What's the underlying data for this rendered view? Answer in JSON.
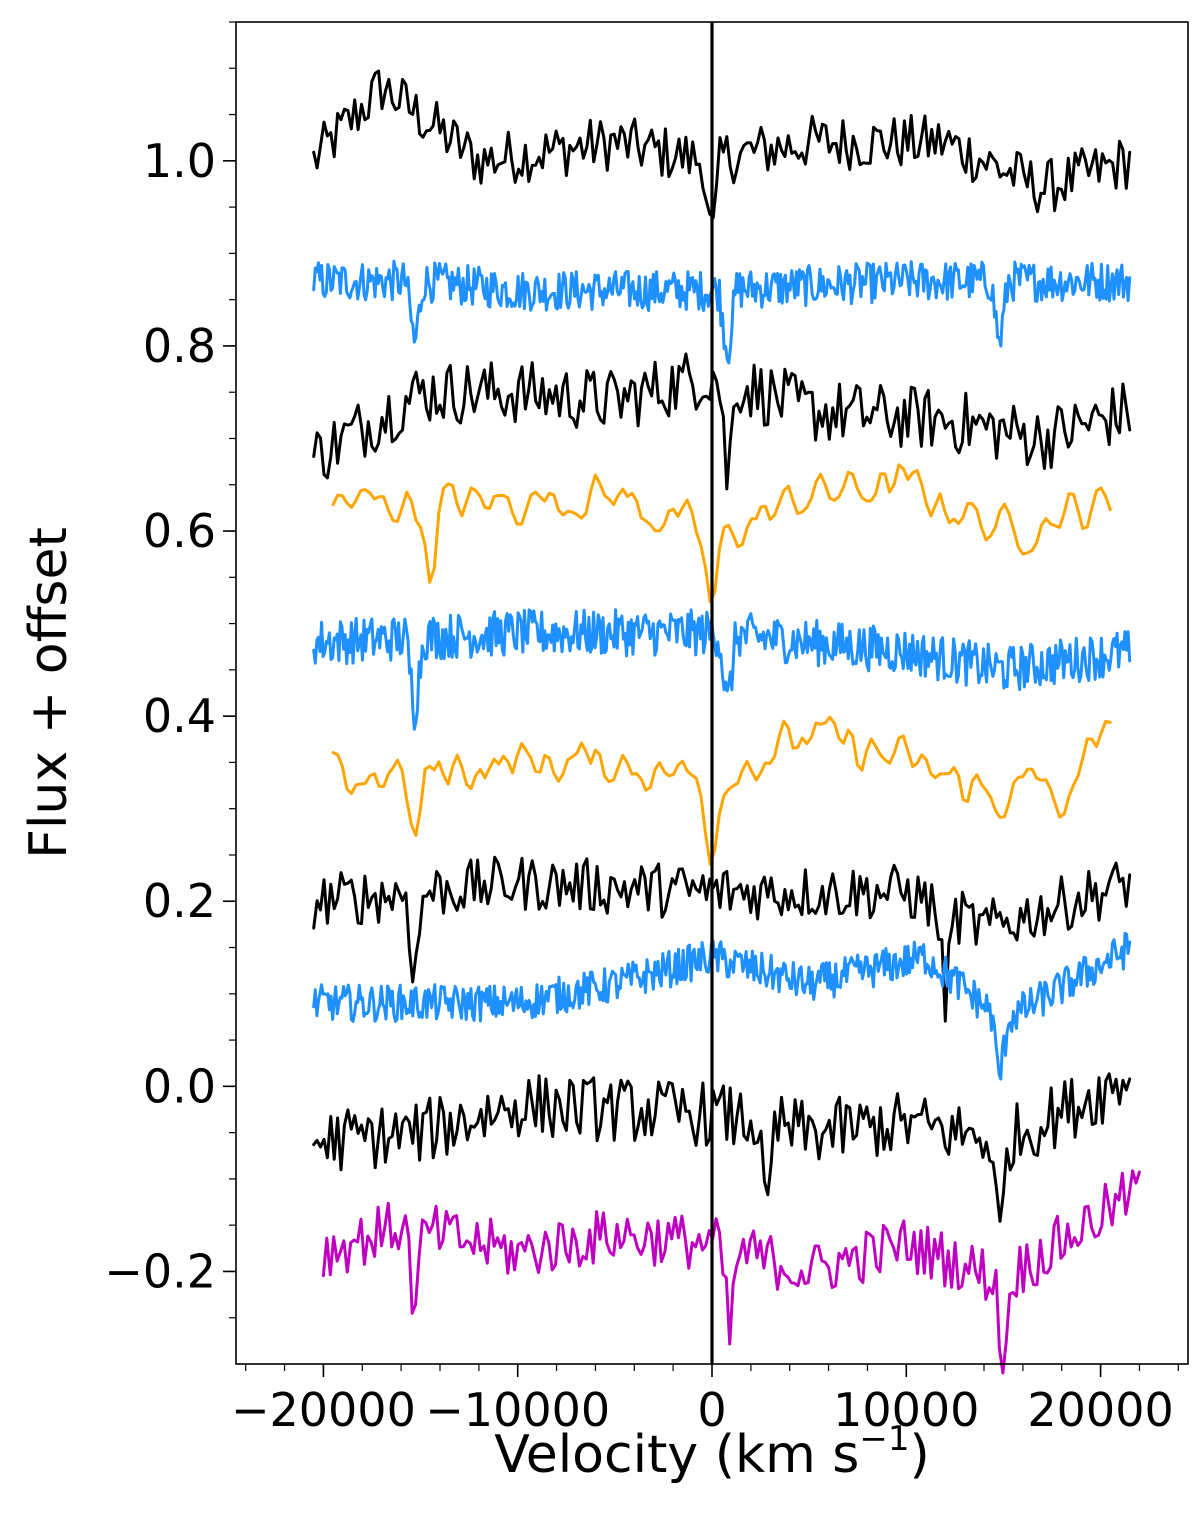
{
  "chart_data": {
    "type": "line",
    "xlabel": "Velocity (km s",
    "xlabel_superscript": "−1",
    "xlabel_suffix": ")",
    "ylabel": "Flux + offset",
    "xlim": [
      -24500,
      24500
    ],
    "ylim": [
      -0.3,
      1.15
    ],
    "x_ticks": [
      -20000,
      -10000,
      0,
      10000,
      20000
    ],
    "x_tick_labels": [
      "−20000",
      "−10000",
      "0",
      "10000",
      "20000"
    ],
    "y_ticks": [
      -0.2,
      0.0,
      0.2,
      0.4,
      0.6,
      0.8,
      1.0
    ],
    "y_tick_labels": [
      "−0.2",
      "0.0",
      "0.2",
      "0.4",
      "0.6",
      "0.8",
      "1.0"
    ],
    "minor_x_step": 2000,
    "minor_y_step": 0.05,
    "reference_line_x": 0,
    "grid": false,
    "legend": "none",
    "series": [
      {
        "color": "#000000",
        "x_range": [
          -20500,
          21500
        ],
        "n_points": 240,
        "dip_at": [
          0
        ],
        "baseline": [
          [
            -20500,
            1.0
          ],
          [
            -17000,
            1.08
          ],
          [
            -12000,
            1.0
          ],
          [
            -5000,
            1.02
          ],
          [
            -500,
            1.0
          ],
          [
            5000,
            1.02
          ],
          [
            12000,
            1.02
          ],
          [
            17000,
            0.97
          ],
          [
            21500,
            1.0
          ]
        ],
        "noise": 0.03
      },
      {
        "color": "#1e90ff",
        "x_range": [
          -20500,
          21500
        ],
        "n_points": 520,
        "dip_at": [
          -15300,
          800,
          14800
        ],
        "baseline": [
          [
            -20500,
            0.87
          ],
          [
            -15000,
            0.87
          ],
          [
            -10000,
            0.86
          ],
          [
            0,
            0.86
          ],
          [
            10000,
            0.87
          ],
          [
            21500,
            0.87
          ]
        ],
        "noise": 0.022
      },
      {
        "color": "#000000",
        "x_range": [
          -20500,
          21500
        ],
        "n_points": 240,
        "dip_at": [
          800
        ],
        "baseline": [
          [
            -20500,
            0.68
          ],
          [
            -15000,
            0.75
          ],
          [
            -10000,
            0.75
          ],
          [
            -5000,
            0.74
          ],
          [
            0,
            0.77
          ],
          [
            5000,
            0.73
          ],
          [
            12000,
            0.72
          ],
          [
            17000,
            0.7
          ],
          [
            21500,
            0.73
          ]
        ],
        "noise": 0.035
      },
      {
        "color": "#ffa500",
        "x_range": [
          -19500,
          20500
        ],
        "n_points": 170,
        "dip_at": [
          -14500,
          0
        ],
        "baseline": [
          [
            -19500,
            0.63
          ],
          [
            -12000,
            0.63
          ],
          [
            -5000,
            0.64
          ],
          [
            0,
            0.59
          ],
          [
            5000,
            0.64
          ],
          [
            10000,
            0.65
          ],
          [
            15000,
            0.6
          ],
          [
            20500,
            0.63
          ]
        ],
        "noise": 0.035,
        "smooth": true
      },
      {
        "color": "#1e90ff",
        "x_range": [
          -20500,
          21500
        ],
        "n_points": 520,
        "dip_at": [
          -15300,
          800
        ],
        "baseline": [
          [
            -20500,
            0.48
          ],
          [
            -10000,
            0.49
          ],
          [
            0,
            0.49
          ],
          [
            10000,
            0.47
          ],
          [
            15000,
            0.45
          ],
          [
            21500,
            0.47
          ]
        ],
        "noise": 0.025
      },
      {
        "color": "#ffa500",
        "x_range": [
          -19500,
          20500
        ],
        "n_points": 170,
        "dip_at": [
          -15300,
          0,
          18000
        ],
        "baseline": [
          [
            -19500,
            0.33
          ],
          [
            -10000,
            0.35
          ],
          [
            -5000,
            0.35
          ],
          [
            0,
            0.33
          ],
          [
            5000,
            0.38
          ],
          [
            10000,
            0.35
          ],
          [
            15000,
            0.31
          ],
          [
            20500,
            0.37
          ]
        ],
        "noise": 0.035,
        "smooth": true
      },
      {
        "color": "#000000",
        "x_range": [
          -20500,
          21500
        ],
        "n_points": 240,
        "dip_at": [
          -15300,
          12000
        ],
        "baseline": [
          [
            -20500,
            0.2
          ],
          [
            -15000,
            0.21
          ],
          [
            -10000,
            0.22
          ],
          [
            0,
            0.21
          ],
          [
            10000,
            0.21
          ],
          [
            14000,
            0.17
          ],
          [
            21500,
            0.22
          ]
        ],
        "noise": 0.03
      },
      {
        "color": "#1e90ff",
        "x_range": [
          -20500,
          21500
        ],
        "n_points": 520,
        "dip_at": [
          14800
        ],
        "baseline": [
          [
            -20500,
            0.09
          ],
          [
            -10000,
            0.09
          ],
          [
            -5000,
            0.11
          ],
          [
            0,
            0.14
          ],
          [
            5000,
            0.11
          ],
          [
            11000,
            0.14
          ],
          [
            15000,
            0.07
          ],
          [
            21500,
            0.15
          ]
        ],
        "noise": 0.02
      },
      {
        "color": "#000000",
        "x_range": [
          -20500,
          21500
        ],
        "n_points": 240,
        "dip_at": [
          2800,
          14800
        ],
        "baseline": [
          [
            -20500,
            -0.06
          ],
          [
            -15000,
            -0.05
          ],
          [
            -10000,
            -0.02
          ],
          [
            0,
            -0.03
          ],
          [
            5000,
            -0.05
          ],
          [
            10000,
            -0.04
          ],
          [
            15000,
            -0.06
          ],
          [
            21500,
            0.01
          ]
        ],
        "noise": 0.035
      },
      {
        "color": "#c000c0",
        "x_range": [
          -20000,
          22000
        ],
        "n_points": 240,
        "dip_at": [
          -15300,
          900,
          15000
        ],
        "baseline": [
          [
            -20000,
            -0.18
          ],
          [
            -16000,
            -0.15
          ],
          [
            -10000,
            -0.18
          ],
          [
            -5000,
            -0.16
          ],
          [
            0,
            -0.17
          ],
          [
            5000,
            -0.2
          ],
          [
            10000,
            -0.17
          ],
          [
            15000,
            -0.21
          ],
          [
            22000,
            -0.11
          ]
        ],
        "noise": 0.03
      }
    ]
  }
}
